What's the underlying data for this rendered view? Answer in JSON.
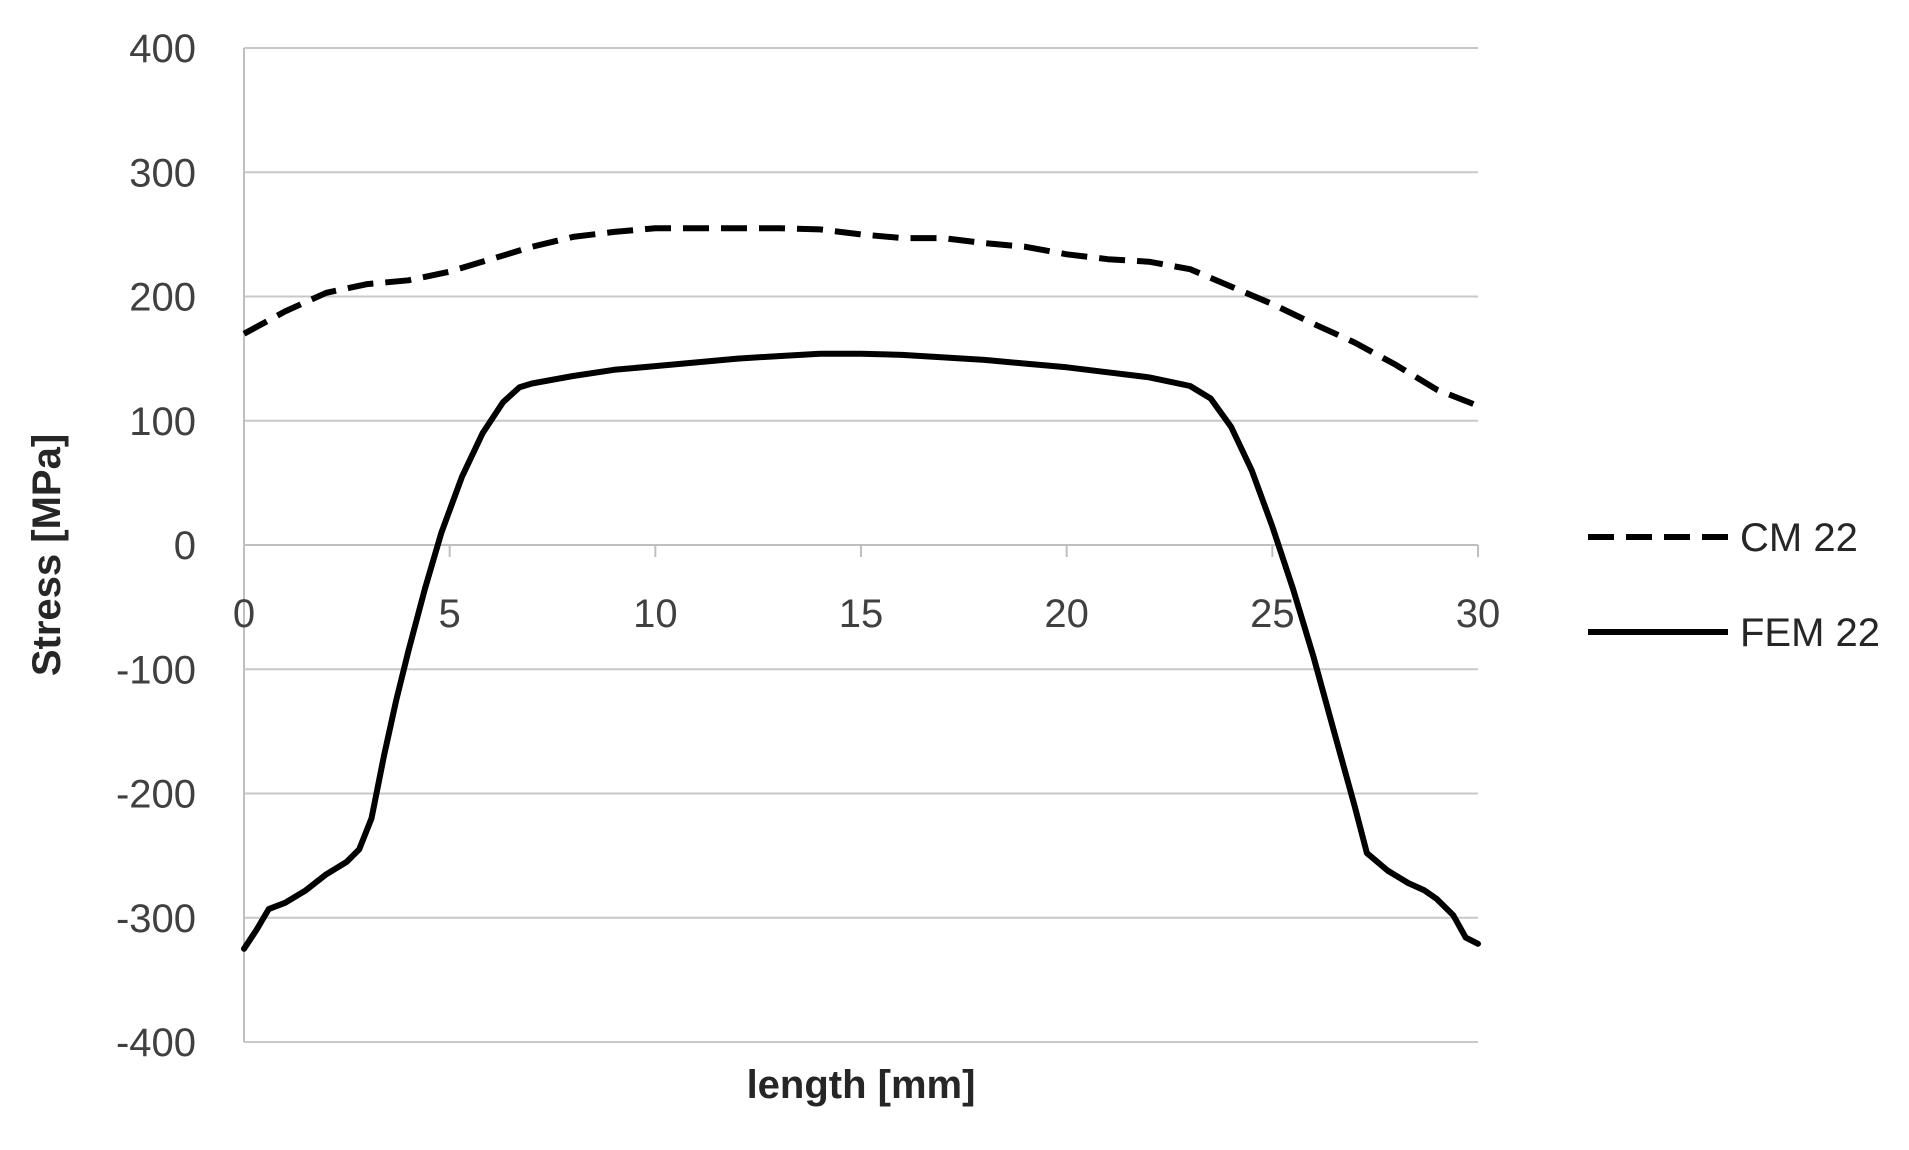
{
  "chart_data": {
    "type": "line",
    "title": "",
    "xlabel": "length [mm]",
    "ylabel": "Stress [MPa]",
    "xlim": [
      0,
      30
    ],
    "ylim": [
      -400,
      400
    ],
    "x_ticks": [
      0,
      5,
      10,
      15,
      20,
      25,
      30
    ],
    "x_tick_labels": [
      "0",
      "5",
      "10",
      "15",
      "20",
      "25",
      "30"
    ],
    "y_ticks": [
      400,
      300,
      200,
      100,
      0,
      -100,
      -200,
      -300,
      -400
    ],
    "y_tick_labels": [
      "400",
      "300",
      "200",
      "100",
      "0",
      "-100",
      "-200",
      "-300",
      "-400"
    ],
    "grid": true,
    "legend_position": "right",
    "series": [
      {
        "name": "CM 22",
        "style": "dashed",
        "color": "#000000",
        "points": [
          [
            0,
            170
          ],
          [
            1,
            188
          ],
          [
            2,
            203
          ],
          [
            3,
            210
          ],
          [
            4,
            213
          ],
          [
            5,
            220
          ],
          [
            6,
            230
          ],
          [
            7,
            240
          ],
          [
            8,
            248
          ],
          [
            9,
            252
          ],
          [
            10,
            255
          ],
          [
            11,
            255
          ],
          [
            12,
            255
          ],
          [
            13,
            255
          ],
          [
            14,
            254
          ],
          [
            15,
            250
          ],
          [
            16,
            247
          ],
          [
            17,
            247
          ],
          [
            18,
            243
          ],
          [
            19,
            240
          ],
          [
            20,
            234
          ],
          [
            21,
            230
          ],
          [
            22,
            228
          ],
          [
            23,
            222
          ],
          [
            24,
            208
          ],
          [
            25,
            194
          ],
          [
            26,
            178
          ],
          [
            27,
            163
          ],
          [
            28,
            145
          ],
          [
            29,
            125
          ],
          [
            30,
            112
          ]
        ]
      },
      {
        "name": "FEM 22",
        "style": "solid",
        "color": "#000000",
        "points": [
          [
            0,
            -325
          ],
          [
            0.3,
            -310
          ],
          [
            0.6,
            -293
          ],
          [
            1,
            -288
          ],
          [
            1.5,
            -278
          ],
          [
            2,
            -265
          ],
          [
            2.5,
            -255
          ],
          [
            2.8,
            -245
          ],
          [
            3.1,
            -220
          ],
          [
            3.4,
            -170
          ],
          [
            3.7,
            -125
          ],
          [
            4,
            -85
          ],
          [
            4.4,
            -35
          ],
          [
            4.8,
            10
          ],
          [
            5.3,
            55
          ],
          [
            5.8,
            90
          ],
          [
            6.3,
            115
          ],
          [
            6.7,
            127
          ],
          [
            7,
            130
          ],
          [
            8,
            136
          ],
          [
            9,
            141
          ],
          [
            10,
            144
          ],
          [
            11,
            147
          ],
          [
            12,
            150
          ],
          [
            13,
            152
          ],
          [
            14,
            154
          ],
          [
            15,
            154
          ],
          [
            16,
            153
          ],
          [
            17,
            151
          ],
          [
            18,
            149
          ],
          [
            19,
            146
          ],
          [
            20,
            143
          ],
          [
            21,
            139
          ],
          [
            22,
            135
          ],
          [
            23,
            128
          ],
          [
            23.5,
            118
          ],
          [
            24,
            95
          ],
          [
            24.5,
            60
          ],
          [
            25,
            15
          ],
          [
            25.5,
            -35
          ],
          [
            26,
            -90
          ],
          [
            26.5,
            -150
          ],
          [
            27,
            -210
          ],
          [
            27.3,
            -248
          ],
          [
            27.8,
            -262
          ],
          [
            28.3,
            -272
          ],
          [
            28.7,
            -278
          ],
          [
            29,
            -285
          ],
          [
            29.4,
            -298
          ],
          [
            29.7,
            -316
          ],
          [
            30,
            -321
          ]
        ]
      }
    ]
  }
}
